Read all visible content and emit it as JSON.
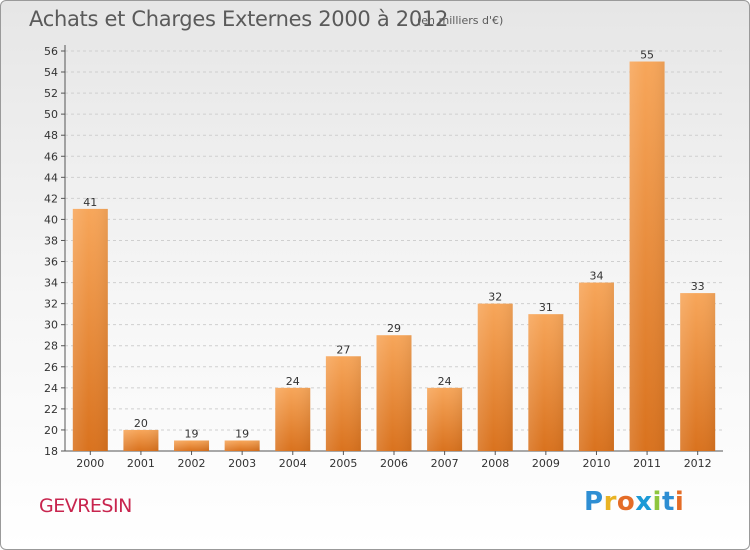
{
  "title": "Achats et Charges Externes 2000 à 2012",
  "subtitle": "(en milliers d'€)",
  "commune": "GEVRESIN",
  "logo": {
    "letters": [
      "P",
      "r",
      "o",
      "x",
      "i",
      "t",
      "i"
    ],
    "colors": [
      "#2e8ed3",
      "#e9b323",
      "#e46c27",
      "#1c9ad6",
      "#8ec63e",
      "#2e8ed3",
      "#e46c27"
    ]
  },
  "colors": {
    "bar_top": "#f7a65a",
    "bar_bottom": "#d9721e",
    "grid": "#cfcfcf",
    "axis": "#555555",
    "title": "#5a5a5a",
    "commune": "#c8254e"
  },
  "chart_data": {
    "type": "bar",
    "title": "Achats et Charges Externes 2000 à 2012",
    "subtitle": "(en milliers d'€)",
    "categories": [
      "2000",
      "2001",
      "2002",
      "2003",
      "2004",
      "2005",
      "2006",
      "2007",
      "2008",
      "2009",
      "2010",
      "2011",
      "2012"
    ],
    "values": [
      41,
      20,
      19,
      19,
      24,
      27,
      29,
      24,
      32,
      31,
      34,
      55,
      33
    ],
    "ylim": [
      18,
      56
    ],
    "yticks": [
      18,
      20,
      22,
      24,
      26,
      28,
      30,
      32,
      34,
      36,
      38,
      40,
      42,
      44,
      46,
      48,
      50,
      52,
      54,
      56
    ],
    "grid": "dashed horizontal",
    "legend": "none",
    "xlabel": "",
    "ylabel": ""
  }
}
